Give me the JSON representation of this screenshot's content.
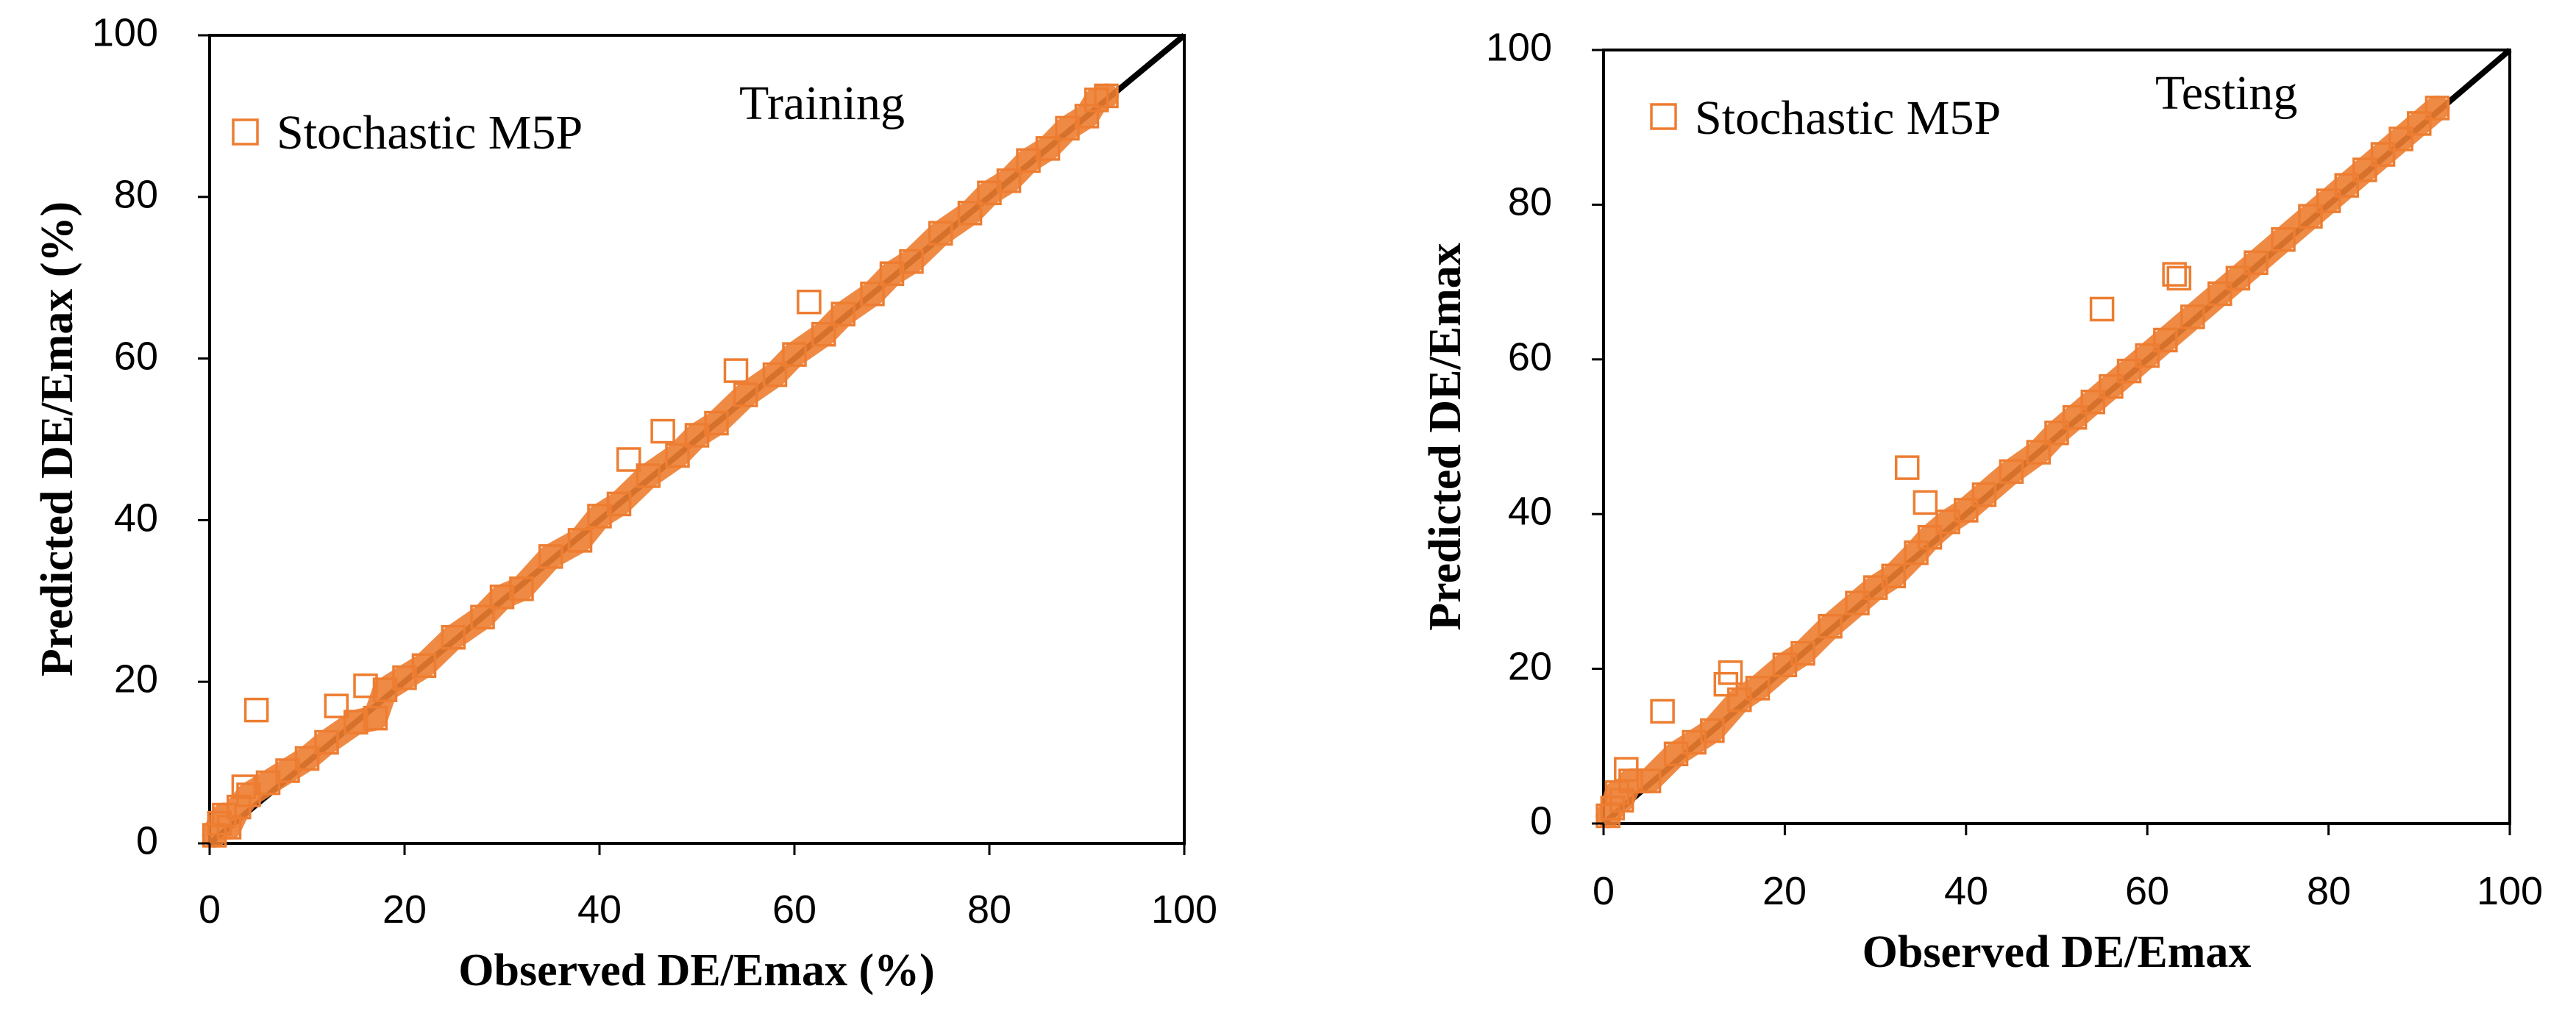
{
  "chart_data": [
    {
      "type": "scatter",
      "title": "",
      "annotation": "Training",
      "xlabel": "Observed DE/Emax (%)",
      "ylabel": "Predicted DE/Emax (%)",
      "xlim": [
        0,
        100
      ],
      "ylim": [
        0,
        100
      ],
      "xticks": [
        "0",
        "20",
        "40",
        "60",
        "80",
        "100"
      ],
      "yticks": [
        "0",
        "20",
        "40",
        "60",
        "80",
        "100"
      ],
      "grid": false,
      "legend": "top-left",
      "reference_line": "1:1",
      "series": [
        {
          "name": "Stochastic M5P",
          "color": "#ED7D31",
          "marker": "hollow-square",
          "points": [
            [
              0.5,
              1.0
            ],
            [
              1.0,
              2.5
            ],
            [
              1.5,
              3.5
            ],
            [
              2.0,
              2.0
            ],
            [
              3.0,
              4.5
            ],
            [
              3.5,
              7.0
            ],
            [
              4.0,
              6.0
            ],
            [
              4.8,
              16.5
            ],
            [
              6.0,
              7.5
            ],
            [
              8.0,
              9.0
            ],
            [
              10.0,
              10.5
            ],
            [
              12.0,
              12.5
            ],
            [
              13.0,
              17.0
            ],
            [
              15.0,
              15.0
            ],
            [
              16.0,
              19.5
            ],
            [
              17.0,
              15.5
            ],
            [
              18.0,
              19.0
            ],
            [
              20.0,
              20.5
            ],
            [
              22.0,
              22.0
            ],
            [
              25.0,
              25.5
            ],
            [
              28.0,
              28.0
            ],
            [
              30.0,
              30.5
            ],
            [
              32.0,
              31.5
            ],
            [
              35.0,
              35.5
            ],
            [
              38.0,
              37.5
            ],
            [
              40.0,
              40.5
            ],
            [
              42.0,
              42.0
            ],
            [
              43.0,
              47.5
            ],
            [
              45.0,
              45.5
            ],
            [
              46.5,
              51.0
            ],
            [
              48.0,
              48.0
            ],
            [
              50.0,
              50.5
            ],
            [
              52.0,
              52.0
            ],
            [
              54.0,
              58.5
            ],
            [
              55.0,
              55.5
            ],
            [
              58.0,
              58.0
            ],
            [
              60.0,
              60.5
            ],
            [
              61.5,
              67.0
            ],
            [
              63.0,
              63.0
            ],
            [
              65.0,
              65.5
            ],
            [
              68.0,
              68.0
            ],
            [
              70.0,
              70.5
            ],
            [
              72.0,
              72.0
            ],
            [
              75.0,
              75.5
            ],
            [
              78.0,
              78.0
            ],
            [
              80.0,
              80.5
            ],
            [
              82.0,
              82.0
            ],
            [
              84.0,
              84.5
            ],
            [
              86.0,
              86.0
            ],
            [
              88.0,
              88.5
            ],
            [
              90.0,
              90.0
            ],
            [
              91.0,
              92.0
            ],
            [
              92.0,
              92.5
            ]
          ]
        }
      ]
    },
    {
      "type": "scatter",
      "title": "",
      "annotation": "Testing",
      "xlabel": "Observed DE/Emax",
      "ylabel": "Predicted DE/Emax",
      "xlim": [
        0,
        100
      ],
      "ylim": [
        0,
        100
      ],
      "xticks": [
        "0",
        "20",
        "40",
        "60",
        "80",
        "100"
      ],
      "yticks": [
        "0",
        "20",
        "40",
        "60",
        "80",
        "100"
      ],
      "grid": false,
      "legend": "top-left",
      "reference_line": "1:1",
      "series": [
        {
          "name": "Stochastic M5P",
          "color": "#ED7D31",
          "marker": "hollow-square",
          "points": [
            [
              0.5,
              1.0
            ],
            [
              1.0,
              2.0
            ],
            [
              1.5,
              4.0
            ],
            [
              2.0,
              3.0
            ],
            [
              2.5,
              7.0
            ],
            [
              3.0,
              5.5
            ],
            [
              5.0,
              5.5
            ],
            [
              6.5,
              14.5
            ],
            [
              8.0,
              9.0
            ],
            [
              10.0,
              10.5
            ],
            [
              12.0,
              12.0
            ],
            [
              13.5,
              18.0
            ],
            [
              14.0,
              19.5
            ],
            [
              15.0,
              16.0
            ],
            [
              17.0,
              17.5
            ],
            [
              20.0,
              20.5
            ],
            [
              22.0,
              22.0
            ],
            [
              25.0,
              25.5
            ],
            [
              28.0,
              28.5
            ],
            [
              30.0,
              30.5
            ],
            [
              32.0,
              32.0
            ],
            [
              33.5,
              46.0
            ],
            [
              34.5,
              35.0
            ],
            [
              35.5,
              41.5
            ],
            [
              36.0,
              37.0
            ],
            [
              38.0,
              39.0
            ],
            [
              40.0,
              40.5
            ],
            [
              42.0,
              42.5
            ],
            [
              45.0,
              45.5
            ],
            [
              48.0,
              48.0
            ],
            [
              50.0,
              50.5
            ],
            [
              52.0,
              52.5
            ],
            [
              54.0,
              54.5
            ],
            [
              55.0,
              66.5
            ],
            [
              56.0,
              56.5
            ],
            [
              58.0,
              58.5
            ],
            [
              60.0,
              60.5
            ],
            [
              62.0,
              62.5
            ],
            [
              63.0,
              71.0
            ],
            [
              63.5,
              70.5
            ],
            [
              65.0,
              65.5
            ],
            [
              68.0,
              68.5
            ],
            [
              70.0,
              70.5
            ],
            [
              72.0,
              72.5
            ],
            [
              75.0,
              75.5
            ],
            [
              78.0,
              78.5
            ],
            [
              80.0,
              80.5
            ],
            [
              82.0,
              82.5
            ],
            [
              84.0,
              84.5
            ],
            [
              86.0,
              86.5
            ],
            [
              88.0,
              88.5
            ],
            [
              90.0,
              90.5
            ],
            [
              92.0,
              92.5
            ]
          ]
        }
      ]
    }
  ]
}
